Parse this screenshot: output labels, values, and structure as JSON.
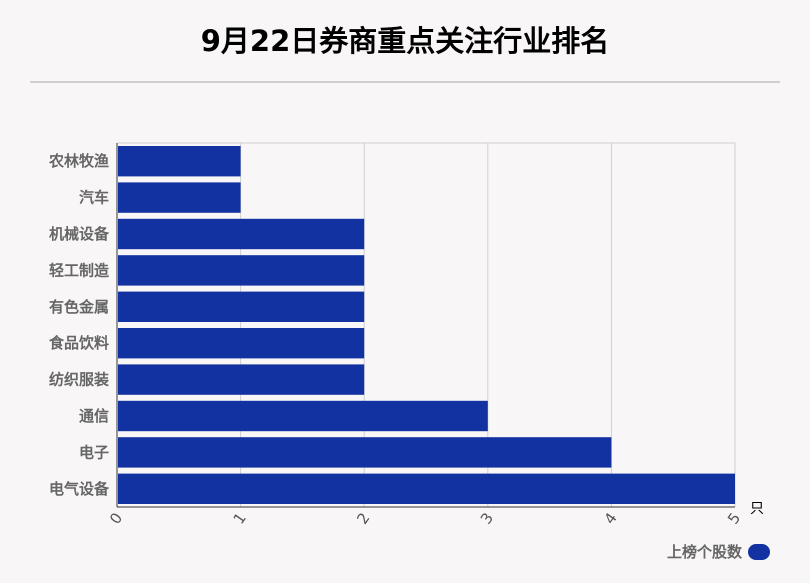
{
  "chart_data": {
    "type": "bar",
    "orientation": "horizontal",
    "title": "9月22日券商重点关注行业排名",
    "categories": [
      "农林牧渔",
      "汽车",
      "机械设备",
      "轻工制造",
      "有色金属",
      "食品饮料",
      "纺织服装",
      "通信",
      "电子",
      "电气设备"
    ],
    "series": [
      {
        "name": "上榜个股数",
        "values": [
          1,
          1,
          2,
          2,
          2,
          2,
          2,
          3,
          4,
          5
        ]
      }
    ],
    "xticks": [
      "0",
      "1",
      "2",
      "3",
      "4",
      "5"
    ],
    "xlim": [
      0,
      5
    ],
    "unit": "只",
    "grid": true,
    "legend_position": "bottom-right",
    "bar_color": "#1132a0"
  }
}
